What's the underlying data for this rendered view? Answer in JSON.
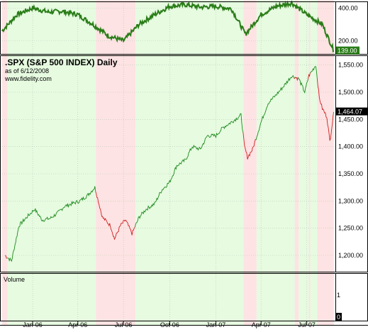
{
  "header": {
    "title": ".SPX (S&P 500 INDEX) Daily",
    "asof": "as of 6/12/2008",
    "site": "www.fidelity.com"
  },
  "colors": {
    "up_band": "#e6fbe0",
    "down_band": "#fde3e3",
    "indicator_line": "#2a7d18",
    "price_up": "#1f8a1f",
    "price_down": "#cc2222",
    "frame": "#000000",
    "grid": "#b8c8b8"
  },
  "chart_data": [
    {
      "type": "line",
      "name": "indicator",
      "y_ticks": [
        400,
        200
      ],
      "last_value_label": "139.00",
      "x_dates": [
        "2005-11-01",
        "2005-12-01",
        "2006-01-01",
        "2006-02-01",
        "2006-03-01",
        "2006-04-01",
        "2006-05-01",
        "2006-06-01",
        "2006-07-01",
        "2006-08-01",
        "2006-09-01",
        "2006-10-01",
        "2006-11-01",
        "2006-12-01",
        "2007-01-01",
        "2007-02-01",
        "2007-03-01",
        "2007-04-01",
        "2007-05-01",
        "2007-06-01",
        "2007-07-01",
        "2007-08-01",
        "2007-08-24"
      ],
      "values": [
        260,
        360,
        400,
        375,
        380,
        360,
        300,
        230,
        200,
        300,
        360,
        410,
        420,
        405,
        410,
        395,
        240,
        360,
        410,
        430,
        360,
        300,
        139
      ]
    },
    {
      "type": "line",
      "name": "price",
      "title": ".SPX (S&P 500 INDEX) Daily",
      "y_ticks": [
        1200,
        1250,
        1300,
        1350,
        1400,
        1450,
        1500,
        1550
      ],
      "ylim": [
        1170,
        1560
      ],
      "last_value_label": "1,464.07",
      "x_tick_labels": [
        "Jan-06",
        "Apr-06",
        "Jul-06",
        "Oct-06",
        "Jan-07",
        "Apr-07",
        "Jul-07"
      ],
      "x_ticks": [
        "2006-01-01",
        "2006-04-01",
        "2006-07-01",
        "2006-10-01",
        "2007-01-01",
        "2007-04-01",
        "2007-07-01"
      ],
      "xlim": [
        "2005-11-07",
        "2007-08-24"
      ],
      "x_dates": [
        "2005-11-07",
        "2005-11-20",
        "2005-12-05",
        "2005-12-20",
        "2006-01-05",
        "2006-01-20",
        "2006-02-05",
        "2006-02-20",
        "2006-03-05",
        "2006-03-20",
        "2006-04-05",
        "2006-04-20",
        "2006-05-05",
        "2006-05-20",
        "2006-06-05",
        "2006-06-13",
        "2006-06-25",
        "2006-07-05",
        "2006-07-18",
        "2006-08-01",
        "2006-08-15",
        "2006-09-01",
        "2006-09-15",
        "2006-10-01",
        "2006-10-15",
        "2006-11-01",
        "2006-11-15",
        "2006-12-01",
        "2006-12-15",
        "2007-01-01",
        "2007-01-15",
        "2007-02-01",
        "2007-02-20",
        "2007-02-27",
        "2007-03-05",
        "2007-03-15",
        "2007-04-01",
        "2007-04-15",
        "2007-05-01",
        "2007-05-15",
        "2007-06-01",
        "2007-06-15",
        "2007-06-27",
        "2007-07-05",
        "2007-07-19",
        "2007-07-26",
        "2007-08-01",
        "2007-08-10",
        "2007-08-16",
        "2007-08-24"
      ],
      "values": [
        1200,
        1190,
        1255,
        1270,
        1285,
        1265,
        1268,
        1278,
        1290,
        1295,
        1300,
        1310,
        1325,
        1270,
        1255,
        1230,
        1255,
        1265,
        1240,
        1270,
        1285,
        1295,
        1320,
        1335,
        1365,
        1375,
        1400,
        1395,
        1420,
        1420,
        1435,
        1445,
        1458,
        1400,
        1380,
        1395,
        1445,
        1480,
        1495,
        1510,
        1530,
        1525,
        1500,
        1530,
        1550,
        1490,
        1470,
        1455,
        1410,
        1464
      ],
      "regimes": [
        {
          "state": "down",
          "from": "2005-11-01",
          "to": "2005-11-12"
        },
        {
          "state": "up",
          "from": "2005-11-12",
          "to": "2006-05-07"
        },
        {
          "state": "down",
          "from": "2006-05-07",
          "to": "2006-07-25"
        },
        {
          "state": "up",
          "from": "2006-07-25",
          "to": "2007-02-25"
        },
        {
          "state": "down",
          "from": "2007-02-25",
          "to": "2007-03-23"
        },
        {
          "state": "up",
          "from": "2007-03-23",
          "to": "2007-06-07"
        },
        {
          "state": "down",
          "from": "2007-06-07",
          "to": "2007-06-15"
        },
        {
          "state": "up",
          "from": "2007-06-15",
          "to": "2007-07-05"
        },
        {
          "state": "down",
          "from": "2007-07-05",
          "to": "2007-07-08"
        },
        {
          "state": "up",
          "from": "2007-07-08",
          "to": "2007-07-22"
        },
        {
          "state": "down",
          "from": "2007-07-22",
          "to": "2007-08-24"
        }
      ]
    },
    {
      "type": "bar",
      "name": "volume",
      "title": "Volume",
      "y_ticks": [
        1,
        0
      ],
      "values": []
    }
  ]
}
